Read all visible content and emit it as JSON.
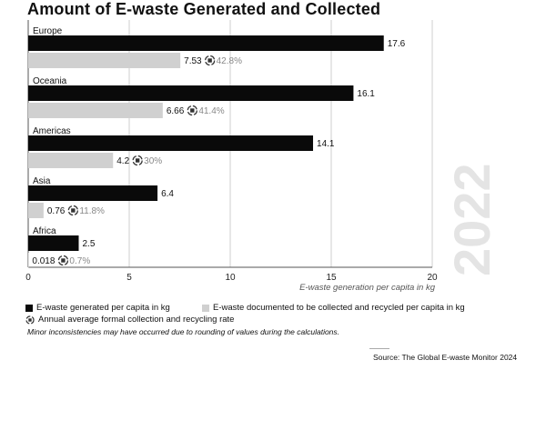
{
  "title": "Amount of E-waste Generated and Collected",
  "year_watermark": "2022",
  "colors": {
    "generated": "#0a0a0a",
    "collected": "#d0d0d0",
    "rate_text": "#888888"
  },
  "chart_data": {
    "type": "bar",
    "orientation": "horizontal",
    "categories": [
      "Europe",
      "Oceania",
      "Americas",
      "Asia",
      "Africa"
    ],
    "series": [
      {
        "name": "E-waste generated per capita in kg",
        "values": [
          17.6,
          16.1,
          14.1,
          6.4,
          2.5
        ],
        "labels": [
          "17.6",
          "16.1",
          "14.1",
          "6.4",
          "2.5"
        ]
      },
      {
        "name": "E-waste documented to be collected and recycled per capita in kg",
        "values": [
          7.53,
          6.66,
          4.2,
          0.76,
          0.018
        ],
        "labels": [
          "7.53",
          "6.66",
          "4.2",
          "0.76",
          "0.018"
        ]
      }
    ],
    "rates": [
      "42.8%",
      "41.4%",
      "30%",
      "11.8%",
      "0.7%"
    ],
    "rate_name": "Annual average formal collection and recycling rate",
    "xlim": [
      0,
      20
    ],
    "xticks": [
      0,
      5,
      10,
      15,
      20
    ],
    "xlabel": "E-waste generation per capita in kg",
    "grid": true
  },
  "legend": {
    "generated": "E-waste generated per capita in kg",
    "collected": "E-waste documented to be collected and recycled per capita in kg",
    "rate": "Annual average formal collection and recycling rate"
  },
  "note": "Minor inconsistencies may have occurred due to rounding of values during the calculations.",
  "source": "Source: The Global E-waste Monitor 2024"
}
